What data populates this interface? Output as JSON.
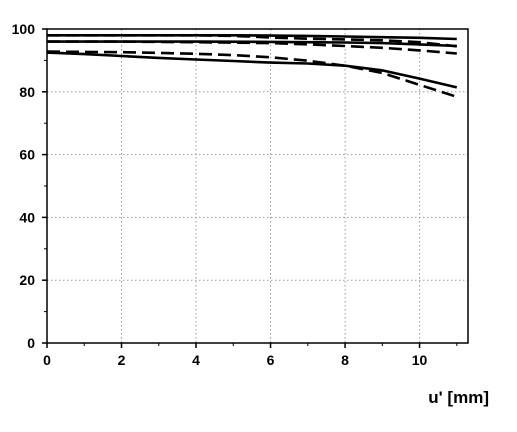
{
  "chart_data": {
    "type": "line",
    "title": "",
    "xlabel": "u' [mm]",
    "ylabel": "",
    "xlim": [
      0,
      11.3
    ],
    "ylim": [
      0,
      100
    ],
    "x_ticks": [
      0,
      2,
      4,
      6,
      8,
      10
    ],
    "y_ticks": [
      0,
      20,
      40,
      60,
      80,
      100
    ],
    "grid": true,
    "legend": "none",
    "series": [
      {
        "style": "solid",
        "x": [
          0,
          2,
          4,
          5,
          6,
          7,
          8,
          9,
          10,
          11
        ],
        "y": [
          98,
          98,
          98,
          98,
          97.9,
          97.8,
          97.6,
          97.4,
          97.2,
          96.8
        ]
      },
      {
        "style": "dashed",
        "x": [
          0,
          2,
          4,
          5,
          6,
          7,
          8,
          9,
          10,
          11
        ],
        "y": [
          98,
          98,
          98,
          97.8,
          97.3,
          96.9,
          96.7,
          96.4,
          95.8,
          94.5
        ]
      },
      {
        "style": "solid",
        "x": [
          0,
          2,
          4,
          6,
          7,
          8,
          9,
          10,
          11
        ],
        "y": [
          96,
          96,
          96,
          95.9,
          95.8,
          95.7,
          95.5,
          95.1,
          94.6
        ]
      },
      {
        "style": "dashed",
        "x": [
          0,
          2,
          4,
          6,
          7,
          8,
          9,
          10,
          11
        ],
        "y": [
          96,
          96,
          95.8,
          95.5,
          95.1,
          94.6,
          94,
          93.2,
          92.2
        ]
      },
      {
        "style": "solid",
        "x": [
          0,
          1,
          2,
          3,
          4,
          5,
          6,
          7,
          8,
          9,
          10,
          11
        ],
        "y": [
          92.5,
          92,
          91.4,
          90.8,
          90.3,
          89.8,
          89.3,
          89,
          88.3,
          86.8,
          84.2,
          81.4
        ]
      },
      {
        "style": "dashed",
        "x": [
          0,
          1,
          2,
          3,
          4,
          5,
          6,
          7,
          8,
          9,
          10,
          11
        ],
        "y": [
          92.8,
          92.7,
          92.6,
          92.4,
          92.1,
          91.7,
          91,
          89.9,
          88.3,
          86,
          82.2,
          78.4
        ]
      }
    ]
  }
}
